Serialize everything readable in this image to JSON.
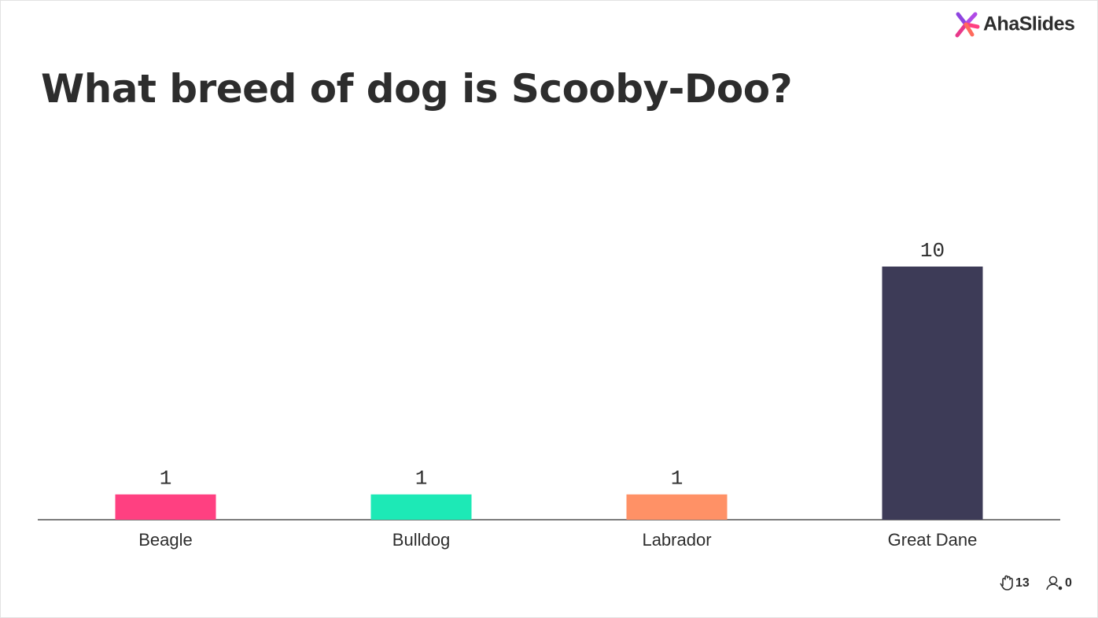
{
  "logo": "AhaSlides",
  "chart_data": {
    "type": "bar",
    "title": "What breed of dog is Scooby-Doo?",
    "categories": [
      "Beagle",
      "Bulldog",
      "Labrador",
      "Great Dane"
    ],
    "values": [
      1,
      1,
      1,
      10
    ],
    "colors": [
      "#ff4081",
      "#1de9b6",
      "#ff9166",
      "#3d3b57"
    ]
  },
  "footer": {
    "responses": 13,
    "participants": 0
  }
}
